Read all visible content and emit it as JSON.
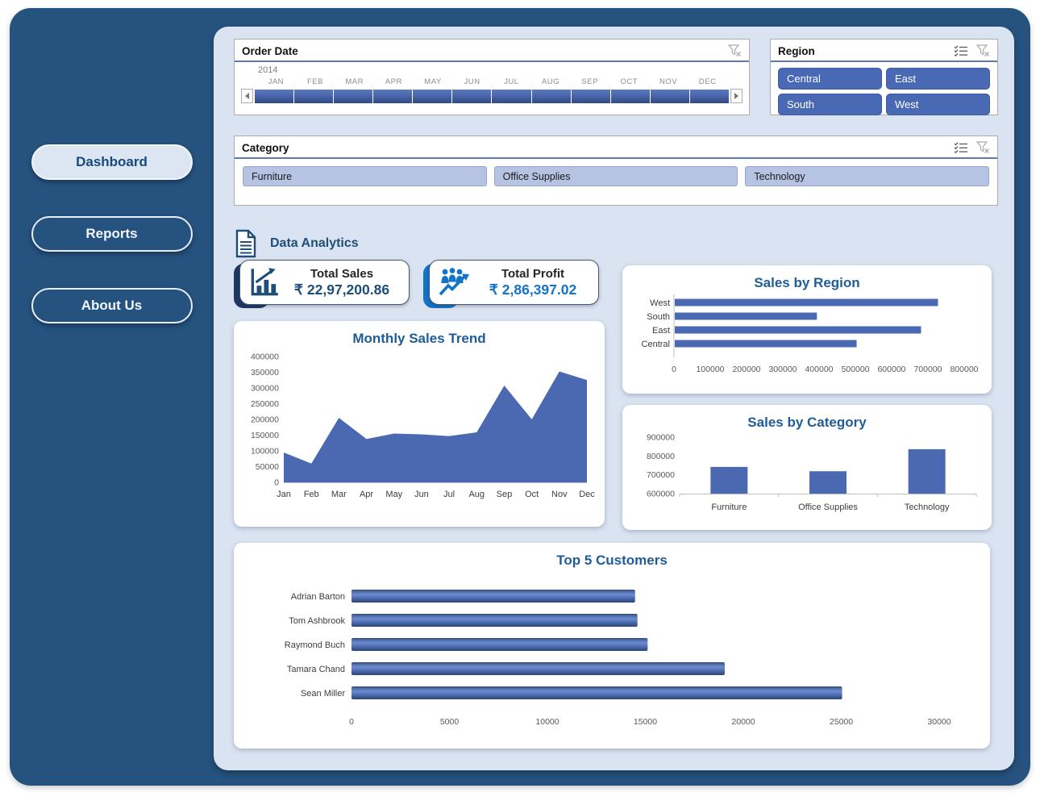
{
  "sidebar": {
    "items": [
      {
        "label": "Dashboard",
        "active": true
      },
      {
        "label": "Reports",
        "active": false
      },
      {
        "label": "About Us",
        "active": false
      }
    ]
  },
  "slicers": {
    "order_date": {
      "title": "Order Date",
      "year": "2014",
      "months": [
        "JAN",
        "FEB",
        "MAR",
        "APR",
        "MAY",
        "JUN",
        "JUL",
        "AUG",
        "SEP",
        "OCT",
        "NOV",
        "DEC"
      ],
      "icons": [
        "clear-filter-icon"
      ]
    },
    "region": {
      "title": "Region",
      "options": [
        "Central",
        "East",
        "South",
        "West"
      ],
      "icons": [
        "multi-select-icon",
        "clear-filter-icon"
      ]
    },
    "category": {
      "title": "Category",
      "options": [
        "Furniture",
        "Office Supplies",
        "Technology"
      ],
      "icons": [
        "multi-select-icon",
        "clear-filter-icon"
      ]
    }
  },
  "header": {
    "title": "Data Analytics",
    "icon": "document-icon"
  },
  "kpis": [
    {
      "label": "Total Sales",
      "value": "₹ 22,97,200.86",
      "icon": "bar-chart-growth-icon",
      "accent": "#1F3864",
      "value_color": "#1F4E79"
    },
    {
      "label": "Total Profit",
      "value": "₹ 2,86,397.02",
      "icon": "people-trend-icon",
      "accent": "#1273C8",
      "value_color": "#1273C8"
    }
  ],
  "chart_data": [
    {
      "id": "region",
      "type": "bar",
      "orientation": "horizontal",
      "title": "Sales by Region",
      "categories": [
        "West",
        "South",
        "East",
        "Central"
      ],
      "values": [
        725458,
        391722,
        678781,
        501240
      ],
      "xlabel": "",
      "ylabel": "",
      "xlim": [
        0,
        800000
      ],
      "xticks": [
        0,
        100000,
        200000,
        300000,
        400000,
        500000,
        600000,
        700000,
        800000
      ],
      "grid": false,
      "legend": false
    },
    {
      "id": "monthly",
      "type": "area",
      "title": "Monthly Sales Trend",
      "categories": [
        "Jan",
        "Feb",
        "Mar",
        "Apr",
        "May",
        "Jun",
        "Jul",
        "Aug",
        "Sep",
        "Oct",
        "Nov",
        "Dec"
      ],
      "values": [
        94925,
        59751,
        205005,
        137762,
        155029,
        152719,
        147238,
        159044,
        307650,
        200323,
        352461,
        325294
      ],
      "xlabel": "",
      "ylabel": "",
      "ylim": [
        0,
        400000
      ],
      "yticks": [
        0,
        50000,
        100000,
        150000,
        200000,
        250000,
        300000,
        350000,
        400000
      ],
      "grid": false,
      "legend": false
    },
    {
      "id": "category",
      "type": "bar",
      "orientation": "vertical",
      "title": "Sales by Category",
      "categories": [
        "Furniture",
        "Office Supplies",
        "Technology"
      ],
      "values": [
        742000,
        719047,
        836154
      ],
      "xlabel": "",
      "ylabel": "",
      "ylim": [
        600000,
        900000
      ],
      "yticks": [
        600000,
        700000,
        800000,
        900000
      ],
      "grid": false,
      "legend": false
    },
    {
      "id": "customers",
      "type": "bar",
      "orientation": "horizontal",
      "style": "3d",
      "title": "Top 5 Customers",
      "categories": [
        "Adrian Barton",
        "Tom Ashbrook",
        "Raymond Buch",
        "Tamara Chand",
        "Sean Miller"
      ],
      "values": [
        14474,
        14596,
        15117,
        19052,
        25043
      ],
      "xlabel": "",
      "ylabel": "",
      "xlim": [
        0,
        32000
      ],
      "xticks": [
        0,
        5000,
        10000,
        15000,
        20000,
        25000,
        30000
      ],
      "grid": false,
      "legend": false
    }
  ],
  "colors": {
    "panel_dark": "#25527E",
    "panel_light": "#DAE3F1",
    "bar_blue": "#4A69B0",
    "title_blue": "#1F5C99",
    "kpi_navy": "#1F3864",
    "kpi_bright_blue": "#1273C8",
    "axis_text": "#595959",
    "slicer_button_blue": "#4A69B5",
    "slicer_button_lavender": "#B7C3E3"
  }
}
